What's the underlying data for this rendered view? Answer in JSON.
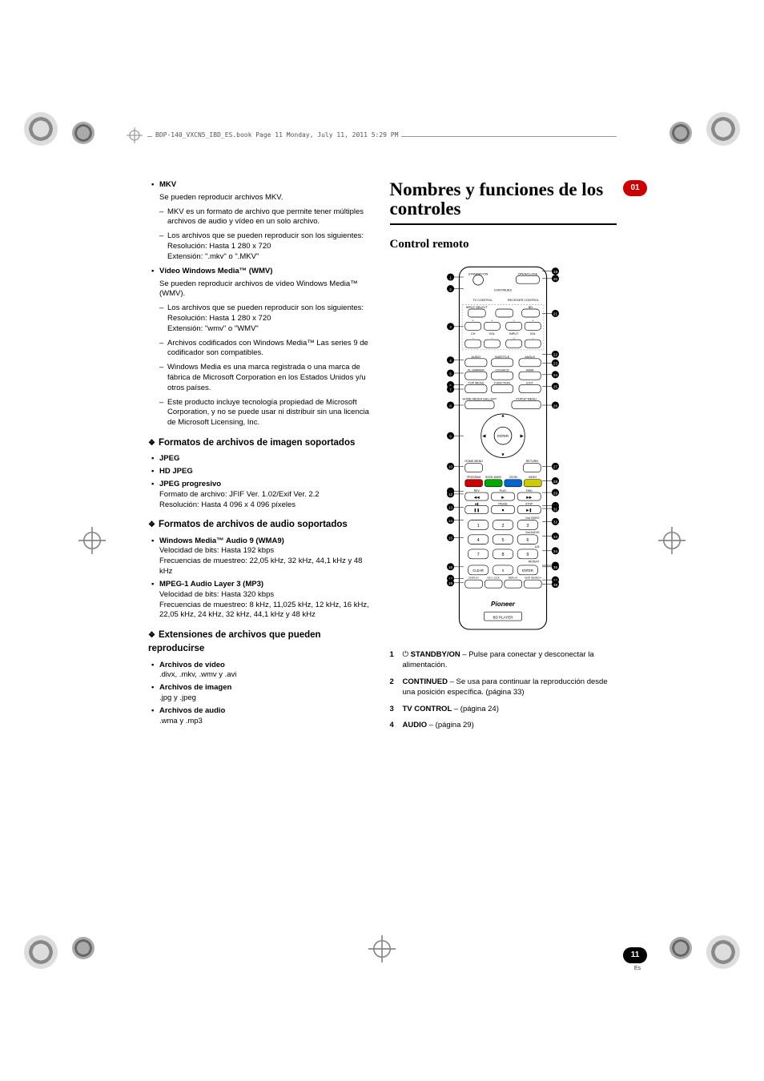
{
  "header": {
    "running_text": "BDP-140_VXCN5_IBD_ES.book  Page 11  Monday, July 11, 2011  5:29 PM"
  },
  "chapter_badge": "01",
  "page_number": "11",
  "page_lang": "Es",
  "left": {
    "mkv": {
      "title": "MKV",
      "intro": "Se pueden reproducir archivos MKV.",
      "b1": "MKV es un formato de archivo que permite tener múltiples archivos de audio y vídeo en un solo archivo.",
      "b2": "Los archivos que se pueden reproducir son los siguientes:",
      "b2a": "Resolución: Hasta 1 280 x 720",
      "b2b": "Extensión: \".mkv\" o \".MKV\""
    },
    "wmv": {
      "title": "Vídeo Windows Media™ (WMV)",
      "intro": "Se pueden reproducir archivos de vídeo Windows Media™ (WMV).",
      "b1": "Los archivos que se pueden reproducir son los siguientes:",
      "b1a": "Resolución: Hasta 1 280 x 720",
      "b1b": "Extensión: \"wmv\" o \"WMV\"",
      "b2": "Archivos codificados con Windows Media™ Las series 9 de codificador son compatibles.",
      "b3": "Windows Media es una marca registrada o una marca de fábrica de Microsoft Corporation en los Estados Unidos y/u otros países.",
      "b4": "Este producto incluye tecnología propiedad de Microsoft Corporation, y no se puede usar ni distribuir sin una licencia de Microsoft Licensing, Inc."
    },
    "img": {
      "head": "Formatos de archivos de imagen soportados",
      "jpeg": "JPEG",
      "hdjpeg": "HD JPEG",
      "prog": "JPEG progresivo",
      "prog1": "Formato de archivo: JFIF Ver. 1.02/Exif Ver. 2.2",
      "prog2": "Resolución: Hasta 4 096 x 4 096 píxeles"
    },
    "audio": {
      "head": "Formatos de archivos de audio soportados",
      "wma": "Windows Media™ Audio 9 (WMA9)",
      "wma1": "Velocidad de bits: Hasta 192 kbps",
      "wma2": "Frecuencias de muestreo: 22,05 kHz, 32 kHz, 44,1 kHz y 48 kHz",
      "mp3": "MPEG-1 Audio Layer 3 (MP3)",
      "mp31": "Velocidad de bits: Hasta 320 kbps",
      "mp32": "Frecuencias de muestreo: 8 kHz, 11,025 kHz, 12 kHz, 16 kHz, 22,05 kHz, 24 kHz, 32 kHz, 44,1 kHz y 48 kHz"
    },
    "ext": {
      "head": "Extensiones de archivos que pueden reproducirse",
      "vid": "Archivos de vídeo",
      "vid1": ".divx, .mkv, .wmv y .avi",
      "img": "Archivos de imagen",
      "img1": ".jpg y .jpeg",
      "aud": "Archivos de audio",
      "aud1": ".wma y .mp3"
    }
  },
  "right": {
    "title": "Nombres y funciones de los controles",
    "subtitle": "Control remoto",
    "remote_svg": {
      "bg": "#ffffff",
      "outline": "#000000",
      "button_fill": "#cccccc",
      "callout_left": [
        "1",
        "2",
        "3",
        "4",
        "5",
        "6",
        "7",
        "8",
        "9",
        "10",
        "11",
        "12",
        "13",
        "14",
        "15",
        "16",
        "17",
        "18"
      ],
      "callout_right": [
        "19",
        "20",
        "21",
        "22",
        "23",
        "24",
        "25",
        "26",
        "27",
        "28",
        "29",
        "30",
        "31",
        "32",
        "33",
        "34",
        "35",
        "36",
        "37",
        "38"
      ],
      "button_labels": [
        "STANDBY/ON",
        "OPEN/CLOSE",
        "CONTINUED",
        "TV CONTROL",
        "RECEIVER CONTROL",
        "INPUT SELECT",
        "CH",
        "VOL",
        "INPUT",
        "VOL",
        "BD",
        "AUDIO",
        "SUBTITLE",
        "ANGLE",
        "FL DIMMER",
        "CD/SACD",
        "HDMI",
        "TOP MENU",
        "FUNCTION",
        "EXIT",
        "HOME MEDIA GALLERY",
        "POPUP MENU",
        "ENTER",
        "HOME MENU",
        "RETURN",
        "PROGRAM",
        "BOOK MARK",
        "ZOOM",
        "INDEX",
        "REV",
        "PLAY",
        "FWD",
        "PAUSE",
        "STOP",
        "2nd VIDEO",
        "2nd AUDIO",
        "A-B",
        "REPEAT",
        "CLEAR",
        "ENTER",
        "DISPLAY",
        "KEY LOCK",
        "REPLAY",
        "SKIP SEARCH",
        "Pioneer",
        "BD PLAYER"
      ]
    },
    "list": {
      "i1": {
        "num": "1",
        "label": "STANDBY/ON",
        "text": " – Pulse para conectar y desconectar la alimentación.",
        "icon": "⏻"
      },
      "i2": {
        "num": "2",
        "label": "CONTINUED",
        "text": " – Se usa para continuar la reproducción desde una posición específica. (página 33)"
      },
      "i3": {
        "num": "3",
        "label": "TV CONTROL",
        "text": " – (página 24)"
      },
      "i4": {
        "num": "4",
        "label": "AUDIO",
        "text": " – (página 29)"
      }
    }
  }
}
